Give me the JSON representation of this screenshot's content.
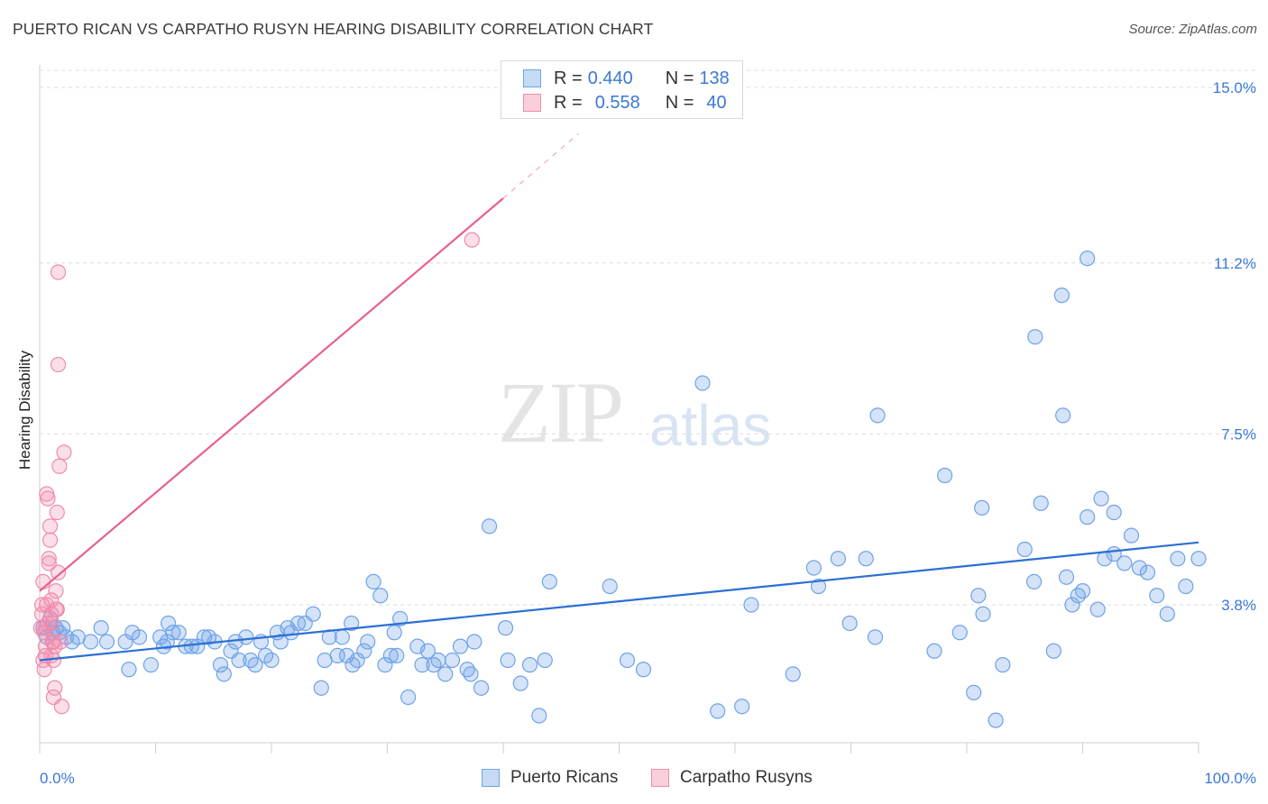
{
  "header": {
    "title": "PUERTO RICAN VS CARPATHO RUSYN HEARING DISABILITY CORRELATION CHART",
    "source": "Source: ZipAtlas.com"
  },
  "watermark": {
    "zip": "ZIP",
    "atlas": "atlas"
  },
  "legend": {
    "rows": [
      {
        "r_label": "R = ",
        "r_value": "0.440",
        "n_label": "N = ",
        "n_value": "138",
        "color": "#6fa3e8"
      },
      {
        "r_label": "R = ",
        "r_value": "0.558",
        "n_label": "N = ",
        "n_value": "40",
        "color": "#f08bab"
      }
    ]
  },
  "bottom_legend": {
    "items": [
      {
        "label": "Puerto Ricans",
        "color": "#6fa3e8"
      },
      {
        "label": "Carpatho Rusyns",
        "color": "#f08bab"
      }
    ]
  },
  "chart_data": {
    "type": "scatter",
    "title": "PUERTO RICAN VS CARPATHO RUSYN HEARING DISABILITY CORRELATION CHART",
    "xlabel": "",
    "ylabel": "Hearing Disability",
    "xlim": [
      0,
      100
    ],
    "ylim": [
      0,
      15.5
    ],
    "x_tick_labels": [
      "0.0%",
      "100.0%"
    ],
    "y_ticks": [
      3.8,
      7.5,
      11.2,
      15.0
    ],
    "y_tick_labels": [
      "3.8%",
      "7.5%",
      "11.2%",
      "15.0%"
    ],
    "grid": true,
    "legend_placement": "top-center",
    "series": [
      {
        "name": "Puerto Ricans",
        "color": "#6fa3e8",
        "trend_color": "#2c6fd4",
        "trend": {
          "x0": 0,
          "y0": 2.6,
          "x1": 100,
          "y1": 5.15
        },
        "points": [
          [
            0.3,
            3.3
          ],
          [
            0.6,
            3.1
          ],
          [
            0.9,
            3.5
          ],
          [
            1.1,
            3.2
          ],
          [
            1.4,
            3.3
          ],
          [
            1.7,
            3.2
          ],
          [
            2.0,
            3.3
          ],
          [
            2.3,
            3.1
          ],
          [
            2.8,
            3.0
          ],
          [
            3.3,
            3.1
          ],
          [
            4.4,
            3.0
          ],
          [
            5.3,
            3.3
          ],
          [
            5.8,
            3.0
          ],
          [
            7.4,
            3.0
          ],
          [
            7.7,
            2.4
          ],
          [
            8.0,
            3.2
          ],
          [
            8.6,
            3.1
          ],
          [
            9.6,
            2.5
          ],
          [
            10.4,
            3.1
          ],
          [
            10.7,
            2.9
          ],
          [
            11.0,
            3.0
          ],
          [
            11.5,
            3.2
          ],
          [
            12.0,
            3.2
          ],
          [
            12.6,
            2.9
          ],
          [
            13.1,
            2.9
          ],
          [
            13.6,
            2.9
          ],
          [
            14.2,
            3.1
          ],
          [
            14.6,
            3.1
          ],
          [
            15.1,
            3.0
          ],
          [
            15.6,
            2.5
          ],
          [
            15.9,
            2.3
          ],
          [
            16.5,
            2.8
          ],
          [
            16.9,
            3.0
          ],
          [
            17.2,
            2.6
          ],
          [
            17.8,
            3.1
          ],
          [
            18.2,
            2.6
          ],
          [
            18.6,
            2.5
          ],
          [
            19.1,
            3.0
          ],
          [
            19.5,
            2.7
          ],
          [
            20.0,
            2.6
          ],
          [
            20.5,
            3.2
          ],
          [
            20.8,
            3.0
          ],
          [
            21.4,
            3.3
          ],
          [
            22.3,
            3.4
          ],
          [
            22.9,
            3.4
          ],
          [
            23.6,
            3.6
          ],
          [
            24.3,
            2.0
          ],
          [
            24.6,
            2.6
          ],
          [
            25.0,
            3.1
          ],
          [
            25.7,
            2.7
          ],
          [
            26.1,
            3.1
          ],
          [
            26.5,
            2.7
          ],
          [
            27.0,
            2.5
          ],
          [
            27.4,
            2.6
          ],
          [
            28.0,
            2.8
          ],
          [
            28.3,
            3.0
          ],
          [
            28.8,
            4.3
          ],
          [
            29.4,
            4.0
          ],
          [
            29.8,
            2.5
          ],
          [
            30.3,
            2.7
          ],
          [
            30.8,
            2.7
          ],
          [
            31.1,
            3.5
          ],
          [
            31.8,
            1.8
          ],
          [
            32.6,
            2.9
          ],
          [
            33.0,
            2.5
          ],
          [
            33.5,
            2.8
          ],
          [
            34.0,
            2.5
          ],
          [
            34.4,
            2.6
          ],
          [
            35.0,
            2.3
          ],
          [
            35.6,
            2.6
          ],
          [
            36.3,
            2.9
          ],
          [
            36.9,
            2.4
          ],
          [
            37.2,
            2.3
          ],
          [
            38.1,
            2.0
          ],
          [
            38.8,
            5.5
          ],
          [
            40.2,
            3.3
          ],
          [
            40.4,
            2.6
          ],
          [
            41.5,
            2.1
          ],
          [
            42.3,
            2.5
          ],
          [
            43.1,
            1.4
          ],
          [
            43.6,
            2.6
          ],
          [
            49.2,
            4.2
          ],
          [
            52.1,
            2.4
          ],
          [
            58.5,
            1.5
          ],
          [
            65.0,
            2.3
          ],
          [
            66.8,
            4.6
          ],
          [
            68.9,
            4.8
          ],
          [
            69.9,
            3.4
          ],
          [
            71.3,
            4.8
          ],
          [
            72.1,
            3.1
          ],
          [
            77.2,
            2.8
          ],
          [
            79.4,
            3.2
          ],
          [
            80.6,
            1.9
          ],
          [
            81.4,
            3.6
          ],
          [
            82.5,
            1.3
          ],
          [
            83.1,
            2.5
          ],
          [
            85.0,
            5.0
          ],
          [
            85.8,
            4.3
          ],
          [
            86.4,
            6.0
          ],
          [
            87.5,
            2.8
          ],
          [
            88.6,
            4.4
          ],
          [
            89.1,
            3.8
          ],
          [
            89.6,
            4.0
          ],
          [
            90.0,
            4.1
          ],
          [
            90.4,
            5.7
          ],
          [
            91.3,
            3.7
          ],
          [
            91.6,
            6.1
          ],
          [
            91.9,
            4.8
          ],
          [
            92.7,
            5.8
          ],
          [
            93.6,
            4.7
          ],
          [
            94.2,
            5.3
          ],
          [
            94.9,
            4.6
          ],
          [
            95.6,
            4.5
          ],
          [
            96.4,
            4.0
          ],
          [
            97.3,
            3.6
          ],
          [
            98.2,
            4.8
          ],
          [
            98.9,
            4.2
          ],
          [
            100.0,
            4.8
          ],
          [
            57.2,
            8.6
          ],
          [
            72.3,
            7.9
          ],
          [
            78.1,
            6.6
          ],
          [
            81.3,
            5.9
          ],
          [
            67.2,
            4.2
          ],
          [
            85.9,
            9.6
          ],
          [
            88.2,
            10.5
          ],
          [
            88.3,
            7.9
          ],
          [
            90.4,
            11.3
          ],
          [
            92.7,
            4.9
          ],
          [
            81.0,
            4.0
          ],
          [
            44.0,
            4.3
          ],
          [
            37.5,
            3.0
          ],
          [
            50.7,
            2.6
          ],
          [
            60.6,
            1.6
          ],
          [
            30.6,
            3.2
          ],
          [
            61.4,
            3.8
          ],
          [
            26.9,
            3.4
          ],
          [
            21.7,
            3.2
          ],
          [
            11.1,
            3.4
          ]
        ]
      },
      {
        "name": "Carpatho Rusyns",
        "color": "#f08bab",
        "trend_color": "#e8608f",
        "trend": {
          "x0": 0,
          "y0": 4.1,
          "x1": 40.0,
          "y1": 12.6
        },
        "trend_dash_to": {
          "x": 46.5,
          "y": 14.0
        },
        "points": [
          [
            0.1,
            3.3
          ],
          [
            0.2,
            3.6
          ],
          [
            0.3,
            4.3
          ],
          [
            0.4,
            3.2
          ],
          [
            0.5,
            2.9
          ],
          [
            0.6,
            3.8
          ],
          [
            0.7,
            3.4
          ],
          [
            0.8,
            4.8
          ],
          [
            0.9,
            5.2
          ],
          [
            1.0,
            3.6
          ],
          [
            1.1,
            3.0
          ],
          [
            1.2,
            2.6
          ],
          [
            1.3,
            2.9
          ],
          [
            1.4,
            4.1
          ],
          [
            1.5,
            3.7
          ],
          [
            0.4,
            2.4
          ],
          [
            0.5,
            2.7
          ],
          [
            0.6,
            6.2
          ],
          [
            0.7,
            6.1
          ],
          [
            0.8,
            4.7
          ],
          [
            0.9,
            5.5
          ],
          [
            1.0,
            3.9
          ],
          [
            1.1,
            3.4
          ],
          [
            1.2,
            1.8
          ],
          [
            1.3,
            2.0
          ],
          [
            1.4,
            3.7
          ],
          [
            1.5,
            5.8
          ],
          [
            1.6,
            4.5
          ],
          [
            1.7,
            6.8
          ],
          [
            1.8,
            3.0
          ],
          [
            1.9,
            1.6
          ],
          [
            2.1,
            7.1
          ],
          [
            0.2,
            3.8
          ],
          [
            0.3,
            2.6
          ],
          [
            0.5,
            3.3
          ],
          [
            1.0,
            2.7
          ],
          [
            1.2,
            3.0
          ],
          [
            1.6,
            11.0
          ],
          [
            1.6,
            9.0
          ],
          [
            37.3,
            11.7
          ]
        ]
      }
    ]
  }
}
